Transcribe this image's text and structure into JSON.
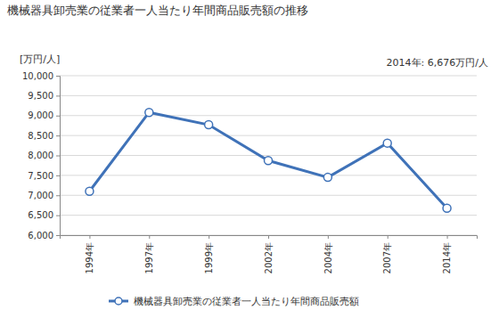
{
  "chart_data": {
    "type": "line",
    "title": "機械器具卸売業の従業者一人当たり年間商品販売額の推移",
    "y_label": "[万円/人]",
    "annotations": [
      "2014年: 6,676万円/人"
    ],
    "categories": [
      "1994年",
      "1997年",
      "1999年",
      "2002年",
      "2004年",
      "2007年",
      "2014年"
    ],
    "series": [
      {
        "name": "機械器具卸売業の従業者一人当たり年間商品販売額",
        "color": "#3f72b8",
        "marker": "circle",
        "values": [
          7100,
          9080,
          8770,
          7870,
          7450,
          8310,
          6676
        ]
      }
    ],
    "ylim": [
      6000,
      10000
    ],
    "yticks": [
      {
        "value": 6000,
        "label": "6,000"
      },
      {
        "value": 6500,
        "label": "6,500"
      },
      {
        "value": 7000,
        "label": "7,000"
      },
      {
        "value": 7500,
        "label": "7,500"
      },
      {
        "value": 8000,
        "label": "8,000"
      },
      {
        "value": 8500,
        "label": "8,500"
      },
      {
        "value": 9000,
        "label": "9,000"
      },
      {
        "value": 9500,
        "label": "9,500"
      },
      {
        "value": 10000,
        "label": "10,000"
      }
    ],
    "grid": true,
    "legend": "bottom"
  }
}
